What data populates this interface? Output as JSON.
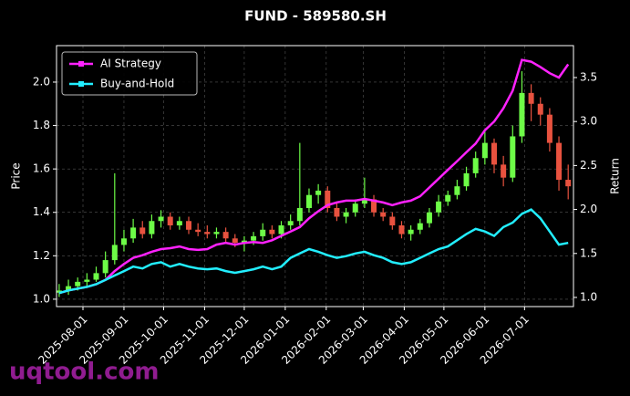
{
  "chart_data": {
    "type": "candlestick",
    "title": "FUND - 589580.SH",
    "y_label": "Price",
    "y2_label": "Return",
    "watermark": "uqtool.com",
    "grid": true,
    "legend_position": "upper left",
    "up_color": "#6dfc47",
    "down_color": "#e8523f",
    "x": [
      "2025-07-14",
      "2025-07-21",
      "2025-07-28",
      "2025-08-04",
      "2025-08-11",
      "2025-08-18",
      "2025-08-25",
      "2025-09-01",
      "2025-09-08",
      "2025-09-15",
      "2025-09-22",
      "2025-09-29",
      "2025-10-06",
      "2025-10-13",
      "2025-10-20",
      "2025-10-27",
      "2025-11-03",
      "2025-11-10",
      "2025-11-17",
      "2025-11-24",
      "2025-12-01",
      "2025-12-08",
      "2025-12-15",
      "2025-12-22",
      "2025-12-29",
      "2026-01-05",
      "2026-01-12",
      "2026-01-19",
      "2026-01-26",
      "2026-02-02",
      "2026-02-09",
      "2026-02-16",
      "2026-02-23",
      "2026-03-02",
      "2026-03-09",
      "2026-03-16",
      "2026-03-23",
      "2026-03-30",
      "2026-04-06",
      "2026-04-13",
      "2026-04-20",
      "2026-04-27",
      "2026-05-04",
      "2026-05-11",
      "2026-05-18",
      "2026-05-25",
      "2026-06-01",
      "2026-06-08",
      "2026-06-15",
      "2026-06-22",
      "2026-06-29",
      "2026-07-06",
      "2026-07-13",
      "2026-07-20",
      "2026-07-27",
      "2026-08-03"
    ],
    "open": [
      1.03,
      1.04,
      1.06,
      1.08,
      1.09,
      1.12,
      1.18,
      1.25,
      1.28,
      1.33,
      1.3,
      1.36,
      1.38,
      1.34,
      1.36,
      1.32,
      1.31,
      1.3,
      1.31,
      1.28,
      1.26,
      1.27,
      1.29,
      1.32,
      1.3,
      1.34,
      1.36,
      1.42,
      1.48,
      1.5,
      1.42,
      1.38,
      1.4,
      1.44,
      1.46,
      1.4,
      1.38,
      1.34,
      1.3,
      1.32,
      1.35,
      1.4,
      1.45,
      1.48,
      1.52,
      1.58,
      1.65,
      1.72,
      1.62,
      1.56,
      1.75,
      1.95,
      1.9,
      1.85,
      1.72,
      1.55
    ],
    "high": [
      1.07,
      1.09,
      1.1,
      1.12,
      1.15,
      1.22,
      1.58,
      1.32,
      1.37,
      1.36,
      1.39,
      1.41,
      1.4,
      1.38,
      1.38,
      1.35,
      1.34,
      1.33,
      1.33,
      1.3,
      1.29,
      1.31,
      1.35,
      1.34,
      1.36,
      1.39,
      1.72,
      1.51,
      1.53,
      1.52,
      1.45,
      1.42,
      1.46,
      1.56,
      1.48,
      1.42,
      1.4,
      1.36,
      1.34,
      1.37,
      1.42,
      1.48,
      1.5,
      1.55,
      1.61,
      1.68,
      1.78,
      1.74,
      1.66,
      1.8,
      2.05,
      1.99,
      1.93,
      1.88,
      1.75,
      1.62
    ],
    "low": [
      1.01,
      1.02,
      1.04,
      1.06,
      1.08,
      1.1,
      1.16,
      1.22,
      1.26,
      1.28,
      1.28,
      1.33,
      1.32,
      1.32,
      1.3,
      1.29,
      1.28,
      1.28,
      1.26,
      1.24,
      1.22,
      1.25,
      1.27,
      1.28,
      1.28,
      1.32,
      1.34,
      1.4,
      1.44,
      1.4,
      1.36,
      1.35,
      1.38,
      1.42,
      1.38,
      1.36,
      1.32,
      1.28,
      1.27,
      1.3,
      1.33,
      1.38,
      1.43,
      1.46,
      1.5,
      1.56,
      1.62,
      1.58,
      1.52,
      1.54,
      1.72,
      1.82,
      1.8,
      1.68,
      1.5,
      1.46
    ],
    "close": [
      1.04,
      1.06,
      1.08,
      1.09,
      1.12,
      1.18,
      1.25,
      1.28,
      1.33,
      1.3,
      1.36,
      1.38,
      1.34,
      1.36,
      1.32,
      1.31,
      1.3,
      1.31,
      1.28,
      1.26,
      1.27,
      1.29,
      1.32,
      1.3,
      1.34,
      1.36,
      1.42,
      1.48,
      1.5,
      1.42,
      1.38,
      1.4,
      1.44,
      1.46,
      1.4,
      1.38,
      1.34,
      1.3,
      1.32,
      1.35,
      1.4,
      1.45,
      1.48,
      1.52,
      1.58,
      1.65,
      1.72,
      1.62,
      1.56,
      1.75,
      1.95,
      1.9,
      1.85,
      1.72,
      1.55,
      1.52
    ],
    "series": [
      {
        "name": "AI Strategy",
        "color": "#ff22ff",
        "axis": "y2",
        "values": [
          1.05,
          1.08,
          1.1,
          1.12,
          1.15,
          1.2,
          1.3,
          1.38,
          1.45,
          1.48,
          1.52,
          1.55,
          1.56,
          1.58,
          1.55,
          1.54,
          1.55,
          1.6,
          1.62,
          1.6,
          1.62,
          1.63,
          1.62,
          1.65,
          1.7,
          1.75,
          1.8,
          1.9,
          1.98,
          2.05,
          2.08,
          2.1,
          2.1,
          2.12,
          2.1,
          2.08,
          2.05,
          2.08,
          2.1,
          2.15,
          2.25,
          2.35,
          2.45,
          2.55,
          2.65,
          2.75,
          2.9,
          3.0,
          3.15,
          3.35,
          3.7,
          3.68,
          3.62,
          3.55,
          3.5,
          3.65
        ]
      },
      {
        "name": "Buy-and-Hold",
        "color": "#22eeff",
        "axis": "y2",
        "values": [
          1.05,
          1.08,
          1.1,
          1.12,
          1.15,
          1.2,
          1.25,
          1.3,
          1.35,
          1.33,
          1.38,
          1.4,
          1.35,
          1.38,
          1.35,
          1.33,
          1.32,
          1.33,
          1.3,
          1.28,
          1.3,
          1.32,
          1.35,
          1.32,
          1.35,
          1.45,
          1.5,
          1.55,
          1.52,
          1.48,
          1.45,
          1.47,
          1.5,
          1.52,
          1.48,
          1.45,
          1.4,
          1.38,
          1.4,
          1.45,
          1.5,
          1.55,
          1.58,
          1.65,
          1.72,
          1.78,
          1.75,
          1.7,
          1.8,
          1.85,
          1.95,
          2.0,
          1.9,
          1.75,
          1.6,
          1.62
        ]
      }
    ],
    "xlim": [
      "2025-07-12",
      "2026-08-07"
    ],
    "xticks": [
      "2025-08-01",
      "2025-09-01",
      "2025-10-01",
      "2025-11-01",
      "2025-12-01",
      "2026-01-01",
      "2026-02-01",
      "2026-03-01",
      "2026-04-01",
      "2026-05-01",
      "2026-06-01",
      "2026-07-01"
    ],
    "ylim": [
      0.966,
      2.168
    ],
    "yticks": [
      {
        "value": 1,
        "label": "1.0"
      },
      1.2,
      1.4,
      1.6,
      1.8,
      {
        "value": 2,
        "label": "2.0"
      }
    ],
    "y2lim": [
      0.896,
      3.863
    ],
    "y2ticks": [
      {
        "value": 1,
        "label": "1.0"
      },
      1.5,
      {
        "value": 2,
        "label": "2.0"
      },
      2.5,
      {
        "value": 3,
        "label": "3.0"
      },
      3.5
    ]
  }
}
